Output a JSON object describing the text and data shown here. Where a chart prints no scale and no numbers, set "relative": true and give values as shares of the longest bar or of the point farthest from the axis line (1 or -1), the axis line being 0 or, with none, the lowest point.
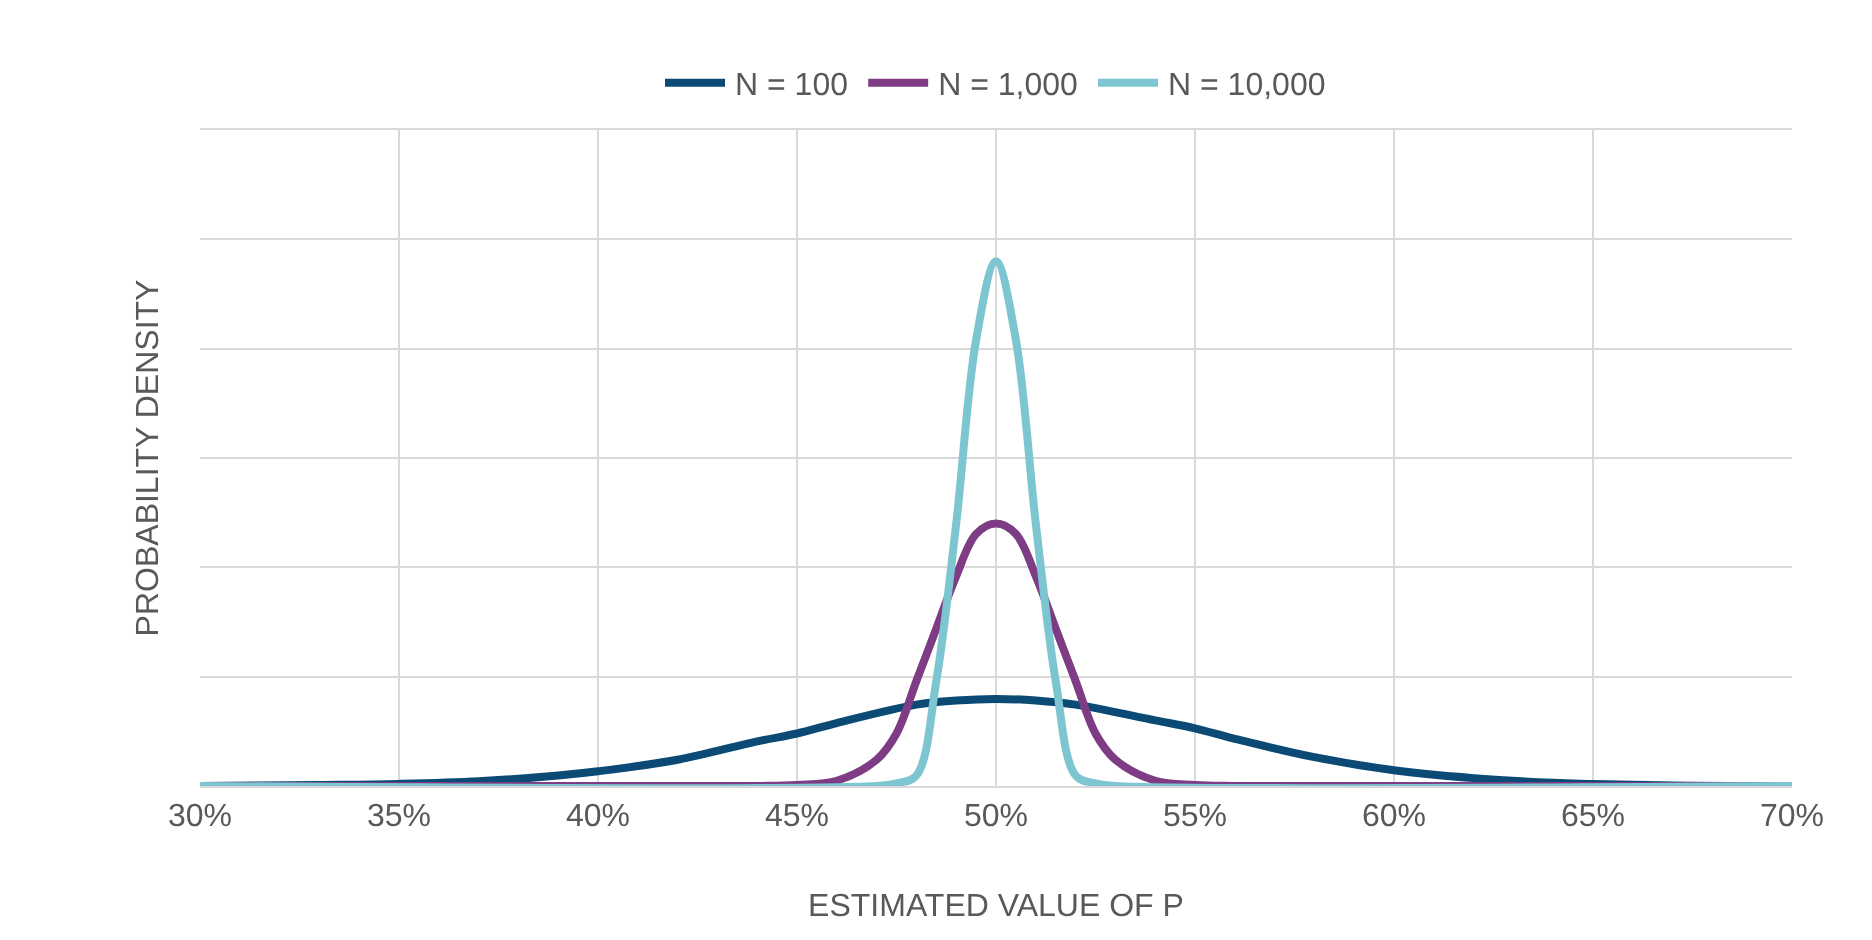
{
  "chart_data": {
    "type": "line",
    "xlabel": "ESTIMATED VALUE OF P",
    "ylabel": "PROBABILITY DENSITY",
    "relative": true,
    "xlim": [
      30,
      70
    ],
    "xticks": [
      {
        "value": 30,
        "label": "30%"
      },
      {
        "value": 35,
        "label": "35%"
      },
      {
        "value": 40,
        "label": "40%"
      },
      {
        "value": 45,
        "label": "45%"
      },
      {
        "value": 50,
        "label": "50%"
      },
      {
        "value": 55,
        "label": "55%"
      },
      {
        "value": 60,
        "label": "60%"
      },
      {
        "value": 65,
        "label": "65%"
      },
      {
        "value": 70,
        "label": "70%"
      }
    ],
    "grid": true,
    "legend": "top",
    "marker": "none",
    "line_style": "solid",
    "series": [
      {
        "name": "N = 100",
        "color": "#0b4a74",
        "x": [
          30,
          33,
          35,
          37,
          39,
          40,
          42,
          44,
          45,
          46,
          48,
          49,
          50,
          51,
          52,
          54,
          55,
          56,
          58,
          60,
          62,
          64,
          65,
          67,
          70
        ],
        "values": [
          0,
          0.002,
          0.004,
          0.009,
          0.02,
          0.028,
          0.05,
          0.085,
          0.1,
          0.12,
          0.155,
          0.163,
          0.166,
          0.163,
          0.155,
          0.125,
          0.11,
          0.09,
          0.055,
          0.03,
          0.015,
          0.006,
          0.004,
          0.001,
          0
        ]
      },
      {
        "name": "N = 1,000",
        "color": "#7d3c83",
        "x": [
          30,
          44,
          45,
          46,
          47,
          47.5,
          48,
          48.5,
          49,
          49.5,
          50,
          50.5,
          51,
          51.5,
          52,
          52.5,
          53,
          54,
          55,
          56,
          70
        ],
        "values": [
          0,
          0,
          0.002,
          0.01,
          0.05,
          0.1,
          0.2,
          0.3,
          0.4,
          0.48,
          0.5,
          0.48,
          0.4,
          0.3,
          0.2,
          0.1,
          0.05,
          0.01,
          0.002,
          0,
          0
        ]
      },
      {
        "name": "N = 10,000",
        "color": "#7cc5d1",
        "x": [
          30,
          47,
          47.5,
          48,
          48.5,
          49,
          49.5,
          50,
          50.5,
          51,
          51.5,
          52,
          52.5,
          53,
          70
        ],
        "values": [
          0,
          0,
          0.005,
          0.02,
          0.2,
          0.5,
          0.85,
          1,
          0.85,
          0.5,
          0.2,
          0.02,
          0.005,
          0,
          0
        ]
      }
    ]
  }
}
